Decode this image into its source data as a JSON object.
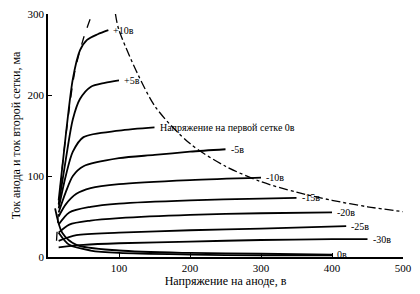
{
  "chart_data": {
    "type": "line",
    "x_label": "Напряжение на аноде, в",
    "y_label": "Ток анода и ток второй сетки, ма",
    "xlim": [
      0,
      500
    ],
    "xticks": [
      100,
      200,
      300,
      400,
      500
    ],
    "ylim": [
      0,
      300
    ],
    "yticks": [
      0,
      100,
      200,
      300
    ],
    "grid": false,
    "series": [
      {
        "name": "+10в",
        "color": "#000000",
        "line_style": "solid",
        "x": [
          15,
          25,
          35,
          45,
          55,
          70,
          85
        ],
        "values": [
          70,
          150,
          220,
          255,
          268,
          275,
          280
        ]
      },
      {
        "name": "+5в",
        "color": "#000000",
        "line_style": "solid",
        "x": [
          15,
          25,
          35,
          45,
          60,
          80,
          100
        ],
        "values": [
          65,
          120,
          170,
          195,
          210,
          215,
          218
        ]
      },
      {
        "name": "Напряжение на первой сетке 0в",
        "color": "#000000",
        "line_style": "solid",
        "x": [
          15,
          25,
          35,
          50,
          100,
          150
        ],
        "values": [
          60,
          100,
          130,
          148,
          156,
          160
        ]
      },
      {
        "name": "-5в",
        "color": "#000000",
        "line_style": "solid",
        "x": [
          15,
          25,
          35,
          50,
          100,
          150,
          200,
          250
        ],
        "values": [
          55,
          80,
          100,
          112,
          122,
          126,
          130,
          133
        ]
      },
      {
        "name": "-10в",
        "color": "#000000",
        "line_style": "solid",
        "x": [
          15,
          25,
          40,
          60,
          100,
          200,
          300
        ],
        "values": [
          50,
          65,
          78,
          85,
          90,
          95,
          98
        ]
      },
      {
        "name": "-15в",
        "color": "#000000",
        "line_style": "solid",
        "x": [
          15,
          30,
          60,
          100,
          200,
          300,
          350
        ],
        "values": [
          40,
          55,
          62,
          66,
          70,
          72,
          73
        ]
      },
      {
        "name": "-20в",
        "color": "#000000",
        "line_style": "solid",
        "x": [
          15,
          30,
          60,
          100,
          200,
          300,
          400
        ],
        "values": [
          30,
          40,
          45,
          48,
          52,
          54,
          55
        ]
      },
      {
        "name": "-25в",
        "color": "#000000",
        "line_style": "solid",
        "x": [
          15,
          40,
          100,
          200,
          300,
          420
        ],
        "values": [
          20,
          27,
          30,
          33,
          35,
          38
        ]
      },
      {
        "name": "-30в",
        "color": "#000000",
        "line_style": "solid",
        "x": [
          15,
          50,
          100,
          200,
          300,
          400,
          450
        ],
        "values": [
          12,
          15,
          17,
          19,
          21,
          22,
          22
        ]
      },
      {
        "name": "0в",
        "color": "#000000",
        "line_style": "solid",
        "x": [
          10,
          20,
          40,
          100,
          200,
          300,
          400
        ],
        "values": [
          60,
          30,
          15,
          8,
          5,
          4,
          3
        ]
      },
      {
        "color": "#000000",
        "line_style": "solid",
        "x": [
          15,
          30,
          60,
          100,
          200,
          300,
          400
        ],
        "values": [
          30,
          15,
          8,
          5,
          3,
          2,
          2
        ]
      },
      {
        "color": "#000000",
        "line_style": "dashdot",
        "x": [
          95,
          100,
          150,
          200,
          250,
          300,
          350,
          400,
          450,
          500
        ],
        "values": [
          300,
          280,
          187,
          140,
          112,
          93,
          80,
          70,
          62,
          56
        ]
      },
      {
        "color": "#000000",
        "line_style": "dash",
        "x": [
          12,
          15,
          20,
          28,
          38,
          50,
          62
        ],
        "values": [
          20,
          60,
          110,
          170,
          230,
          270,
          300
        ]
      }
    ]
  }
}
